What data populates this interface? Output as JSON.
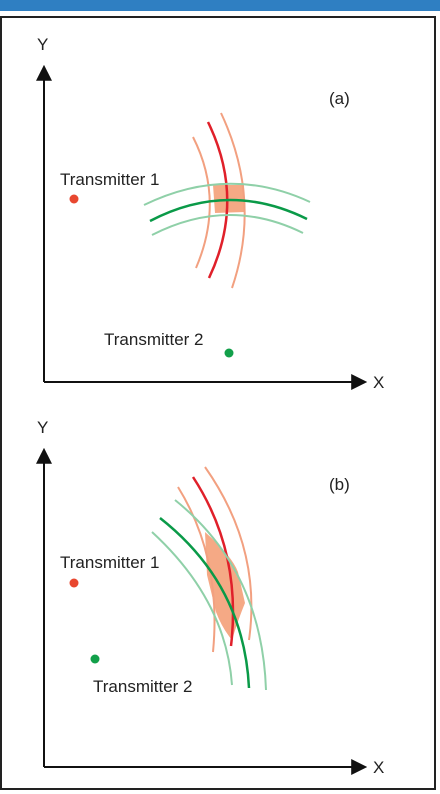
{
  "colors": {
    "topbar": "#2f7fc2",
    "axis": "#111111",
    "tx1": "#e8472f",
    "tx2": "#12a04a",
    "red_core": "#e0202a",
    "red_band": "#f2a080",
    "green_core": "#0a9a48",
    "green_band": "#8fd0a8",
    "overlap": "#f4a078"
  },
  "panels": [
    {
      "id": "a",
      "panel_label": "(a)",
      "y_axis_label": "Y",
      "x_axis_label": "X",
      "transmitter_1_label": "Transmitter 1",
      "transmitter_2_label": "Transmitter 2"
    },
    {
      "id": "b",
      "panel_label": "(b)",
      "y_axis_label": "Y",
      "x_axis_label": "X",
      "transmitter_1_label": "Transmitter 1",
      "transmitter_2_label": "Transmitter 2"
    }
  ]
}
